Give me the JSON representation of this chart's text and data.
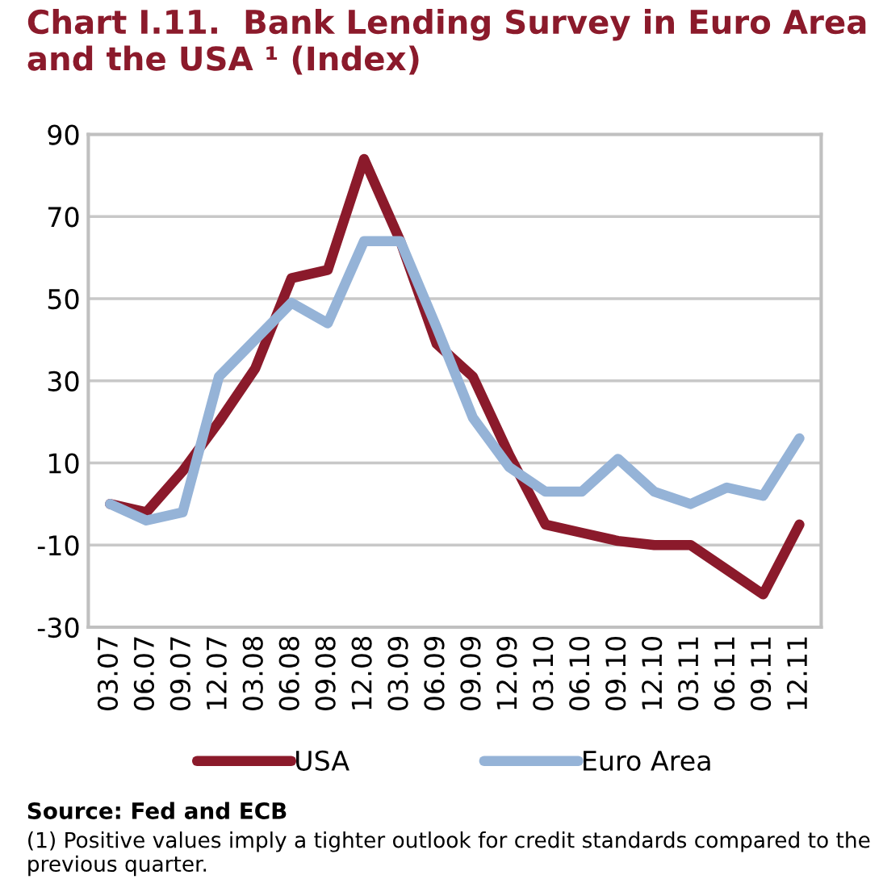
{
  "chart_data": {
    "type": "line",
    "title": "Chart I.11.  Bank Lending Survey in Euro Area and the USA ¹ (Index)",
    "categories": [
      "03.07",
      "06.07",
      "09.07",
      "12.07",
      "03.08",
      "06.08",
      "09.08",
      "12.08",
      "03.09",
      "06.09",
      "09.09",
      "12.09",
      "03.10",
      "06.10",
      "09.10",
      "12.10",
      "03.11",
      "06.11",
      "09.11",
      "12.11"
    ],
    "series": [
      {
        "name": "USA",
        "color": "#8b1a2b",
        "values": [
          0,
          -2,
          8,
          20,
          33,
          55,
          57,
          84,
          64,
          39,
          31,
          12,
          -5,
          -7,
          -9,
          -10,
          -10,
          -16,
          -22,
          -5
        ]
      },
      {
        "name": "Euro Area",
        "color": "#95b3d7",
        "values": [
          0,
          -4,
          -2,
          31,
          40,
          49,
          44,
          64,
          64,
          43,
          21,
          9,
          3,
          3,
          11,
          3,
          0,
          4,
          2,
          16
        ]
      }
    ],
    "ylim": [
      -30,
      90
    ],
    "yticks": [
      -30,
      -10,
      10,
      30,
      50,
      70,
      90
    ],
    "grid": "y",
    "legend": "bottom",
    "marker": "none",
    "line_style": "solid",
    "annotations": [
      "Source: Fed and ECB",
      "(1) Positive values imply a tighter outlook for credit standards compared to the previous quarter."
    ]
  }
}
